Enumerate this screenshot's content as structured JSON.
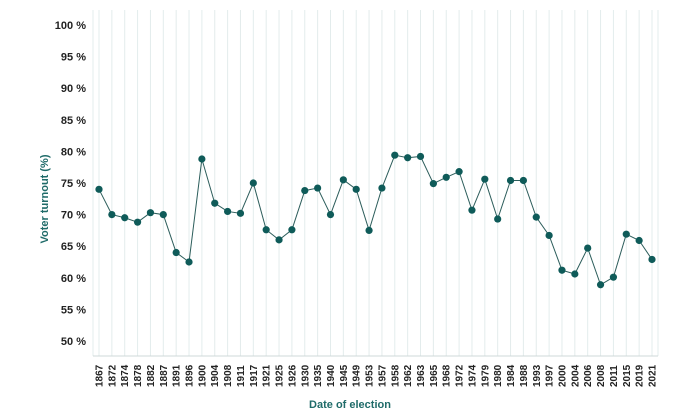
{
  "chart_data": {
    "type": "line",
    "title": "",
    "xlabel": "Date of election",
    "ylabel": "Voter turnout (%)",
    "ylim": [
      50,
      100
    ],
    "yticks": [
      "50 %",
      "55 %",
      "60 %",
      "65 %",
      "70 %",
      "75 %",
      "80 %",
      "85 %",
      "90 %",
      "95 %",
      "100 %"
    ],
    "grid": "vertical",
    "categories": [
      "1867",
      "1872",
      "1874",
      "1878",
      "1882",
      "1887",
      "1891",
      "1896",
      "1900",
      "1904",
      "1908",
      "1911",
      "1917",
      "1921",
      "1925",
      "1926",
      "1930",
      "1935",
      "1940",
      "1945",
      "1949",
      "1953",
      "1957",
      "1958",
      "1962",
      "1963",
      "1965",
      "1968",
      "1972",
      "1974",
      "1979",
      "1980",
      "1984",
      "1988",
      "1993",
      "1997",
      "2000",
      "2004",
      "2006",
      "2008",
      "2011",
      "2015",
      "2019",
      "2021"
    ],
    "series": [
      {
        "values": [
          74.0,
          70.0,
          69.5,
          68.8,
          70.3,
          70.0,
          64.0,
          62.5,
          78.8,
          71.8,
          70.5,
          70.2,
          75.0,
          67.6,
          66.0,
          67.6,
          73.8,
          74.2,
          70.0,
          75.5,
          74.0,
          67.5,
          74.2,
          79.4,
          79.0,
          79.2,
          74.9,
          75.9,
          76.8,
          70.7,
          75.6,
          69.3,
          75.4,
          75.4,
          69.6,
          66.7,
          61.2,
          60.6,
          64.7,
          58.9,
          60.1,
          66.9,
          65.9,
          62.9
        ]
      }
    ],
    "colors": {
      "line": "#2c5d5b",
      "marker": "#0f5b59",
      "grid": "#e3ecec",
      "axis_title": "#1f6b69"
    }
  }
}
